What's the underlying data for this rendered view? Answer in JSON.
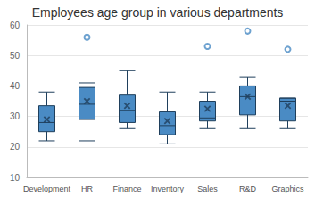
{
  "chart_data": {
    "type": "boxplot",
    "title": "Employees age group in various departments",
    "categories": [
      "Development",
      "HR",
      "Finance",
      "Inventory",
      "Sales",
      "R&D",
      "Graphics"
    ],
    "min": [
      22,
      22,
      26,
      21,
      26,
      26,
      26
    ],
    "q1": [
      25,
      29,
      28,
      24,
      28.5,
      30.5,
      28.5
    ],
    "median": [
      28,
      34,
      32,
      27,
      29.5,
      36.5,
      35
    ],
    "q3": [
      33.5,
      39.5,
      37,
      31.5,
      35,
      40,
      36
    ],
    "max": [
      38,
      41,
      45,
      38,
      38,
      43,
      36
    ],
    "mean": [
      29,
      35,
      33.5,
      28.5,
      32.5,
      36.5,
      33.5
    ],
    "outliers": [
      [],
      [
        56
      ],
      [],
      [],
      [
        53
      ],
      [
        58
      ],
      [
        52
      ]
    ],
    "color": "#4a8bc4",
    "ylim": [
      10,
      60
    ],
    "yticks": [
      10,
      20,
      30,
      40,
      50,
      60
    ],
    "grid": true
  }
}
